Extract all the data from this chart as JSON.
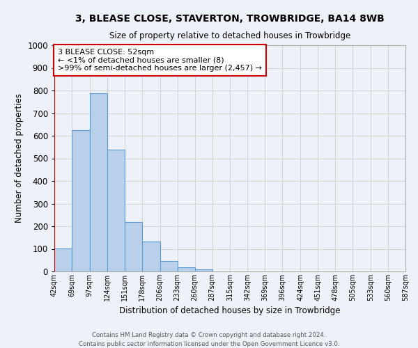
{
  "title": "3, BLEASE CLOSE, STAVERTON, TROWBRIDGE, BA14 8WB",
  "subtitle": "Size of property relative to detached houses in Trowbridge",
  "xlabel": "Distribution of detached houses by size in Trowbridge",
  "ylabel": "Number of detached properties",
  "bar_values": [
    103,
    625,
    787,
    540,
    220,
    133,
    45,
    17,
    10
  ],
  "bar_bins": [
    42,
    69,
    97,
    124,
    151,
    178,
    206,
    233,
    260,
    287
  ],
  "bin_edges": [
    42,
    69,
    97,
    124,
    151,
    178,
    206,
    233,
    260,
    287,
    315,
    342,
    369,
    396,
    424,
    451,
    478,
    505,
    533,
    560,
    587
  ],
  "x_tick_labels": [
    "42sqm",
    "69sqm",
    "97sqm",
    "124sqm",
    "151sqm",
    "178sqm",
    "206sqm",
    "233sqm",
    "260sqm",
    "287sqm",
    "315sqm",
    "342sqm",
    "369sqm",
    "396sqm",
    "424sqm",
    "451sqm",
    "478sqm",
    "505sqm",
    "533sqm",
    "560sqm",
    "587sqm"
  ],
  "bar_color": "#b8d0ea",
  "bar_edge_color": "#5b9bd5",
  "ylim": [
    0,
    1000
  ],
  "yticks": [
    0,
    100,
    200,
    300,
    400,
    500,
    600,
    700,
    800,
    900,
    1000
  ],
  "annotation_title": "3 BLEASE CLOSE: 52sqm",
  "annotation_line1": "← <1% of detached houses are smaller (8)",
  "annotation_line2": ">99% of semi-detached houses are larger (2,457) →",
  "red_line_x": 42,
  "annotation_box_color": "#ffffff",
  "annotation_box_edge_color": "#cc0000",
  "grid_color": "#cccccc",
  "background_color": "#eef2f8",
  "footer_line1": "Contains HM Land Registry data © Crown copyright and database right 2024.",
  "footer_line2": "Contains public sector information licensed under the Open Government Licence v3.0."
}
